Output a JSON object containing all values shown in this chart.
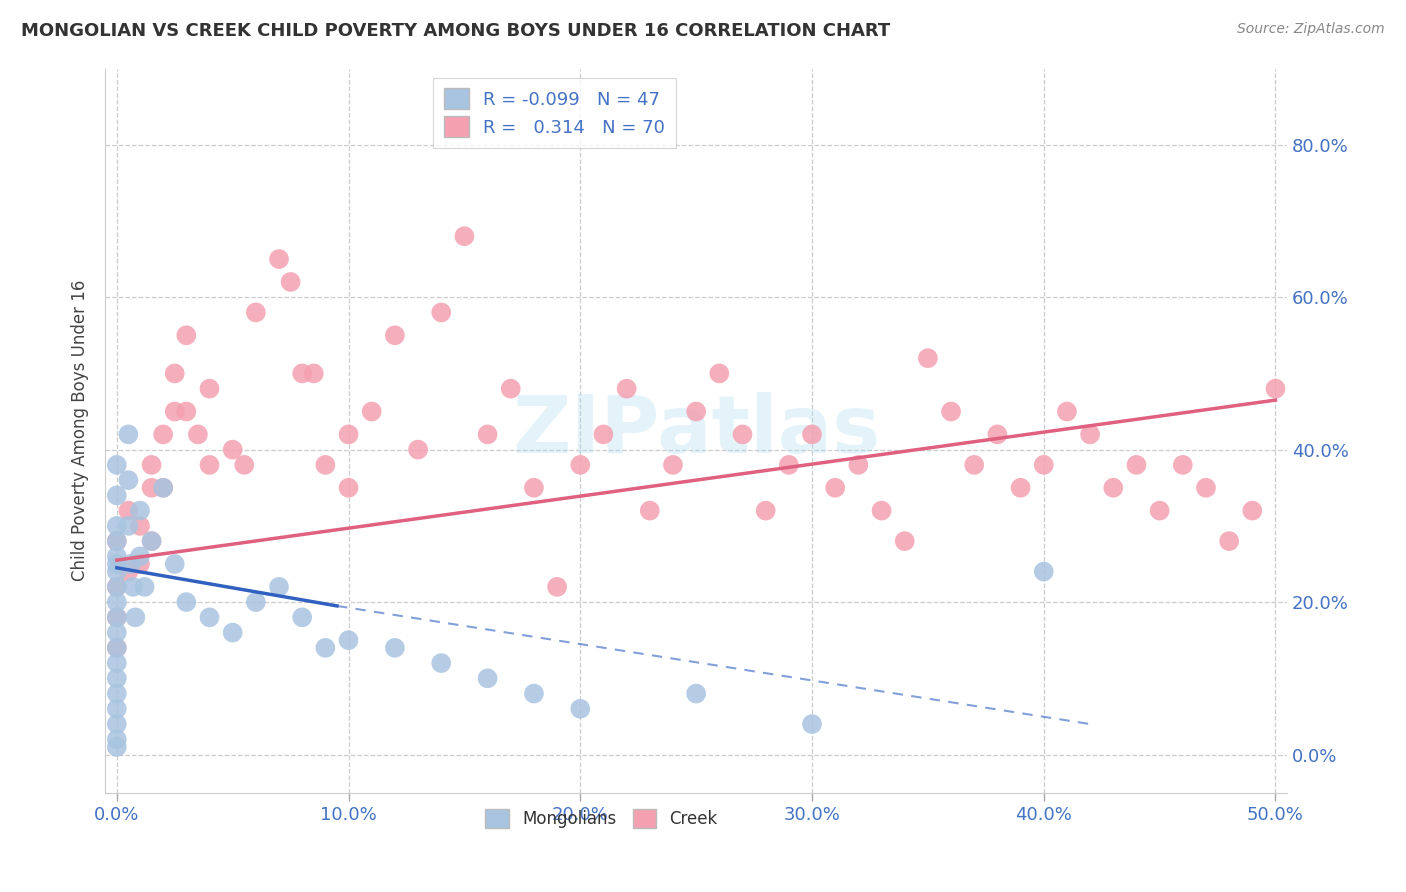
{
  "title": "MONGOLIAN VS CREEK CHILD POVERTY AMONG BOYS UNDER 16 CORRELATION CHART",
  "source": "Source: ZipAtlas.com",
  "ylabel": "Child Poverty Among Boys Under 16",
  "xlim": [
    -0.005,
    0.505
  ],
  "ylim": [
    -0.05,
    0.9
  ],
  "x_ticks": [
    0.0,
    0.1,
    0.2,
    0.3,
    0.4,
    0.5
  ],
  "x_tick_labels": [
    "0.0%",
    "10.0%",
    "20.0%",
    "30.0%",
    "40.0%",
    "50.0%"
  ],
  "y_ticks": [
    0.0,
    0.2,
    0.4,
    0.6,
    0.8
  ],
  "y_tick_labels": [
    "0.0%",
    "20.0%",
    "40.0%",
    "60.0%",
    "80.0%"
  ],
  "mongolian_color": "#a8c4e0",
  "creek_color": "#f4a0b0",
  "mongolian_line_color": "#3060c0",
  "creek_line_color": "#e06080",
  "r_mongolian": -0.099,
  "n_mongolian": 47,
  "r_creek": 0.314,
  "n_creek": 70,
  "mongolian_x": [
    0.0,
    0.0,
    0.0,
    0.0,
    0.0,
    0.0,
    0.0,
    0.0,
    0.0,
    0.0,
    0.0,
    0.0,
    0.0,
    0.0,
    0.0,
    0.0,
    0.0,
    0.0,
    0.0,
    0.005,
    0.005,
    0.005,
    0.006,
    0.007,
    0.008,
    0.01,
    0.01,
    0.012,
    0.015,
    0.02,
    0.025,
    0.03,
    0.04,
    0.05,
    0.06,
    0.07,
    0.08,
    0.09,
    0.1,
    0.12,
    0.14,
    0.16,
    0.18,
    0.2,
    0.25,
    0.3,
    0.4
  ],
  "mongolian_y": [
    0.38,
    0.34,
    0.3,
    0.28,
    0.26,
    0.25,
    0.24,
    0.22,
    0.2,
    0.18,
    0.16,
    0.14,
    0.12,
    0.1,
    0.08,
    0.06,
    0.04,
    0.02,
    0.01,
    0.42,
    0.36,
    0.3,
    0.25,
    0.22,
    0.18,
    0.32,
    0.26,
    0.22,
    0.28,
    0.35,
    0.25,
    0.2,
    0.18,
    0.16,
    0.2,
    0.22,
    0.18,
    0.14,
    0.15,
    0.14,
    0.12,
    0.1,
    0.08,
    0.06,
    0.08,
    0.04,
    0.24
  ],
  "creek_x": [
    0.0,
    0.0,
    0.0,
    0.0,
    0.005,
    0.005,
    0.01,
    0.01,
    0.015,
    0.015,
    0.02,
    0.02,
    0.025,
    0.03,
    0.03,
    0.04,
    0.04,
    0.05,
    0.06,
    0.07,
    0.08,
    0.09,
    0.1,
    0.1,
    0.11,
    0.12,
    0.13,
    0.14,
    0.15,
    0.16,
    0.17,
    0.18,
    0.19,
    0.2,
    0.21,
    0.22,
    0.23,
    0.24,
    0.25,
    0.26,
    0.27,
    0.28,
    0.29,
    0.3,
    0.31,
    0.32,
    0.33,
    0.34,
    0.35,
    0.36,
    0.37,
    0.38,
    0.39,
    0.4,
    0.41,
    0.42,
    0.43,
    0.44,
    0.45,
    0.46,
    0.47,
    0.48,
    0.49,
    0.5,
    0.015,
    0.025,
    0.035,
    0.055,
    0.075,
    0.085
  ],
  "creek_y": [
    0.28,
    0.22,
    0.18,
    0.14,
    0.32,
    0.24,
    0.3,
    0.25,
    0.38,
    0.28,
    0.42,
    0.35,
    0.5,
    0.55,
    0.45,
    0.48,
    0.38,
    0.4,
    0.58,
    0.65,
    0.5,
    0.38,
    0.42,
    0.35,
    0.45,
    0.55,
    0.4,
    0.58,
    0.68,
    0.42,
    0.48,
    0.35,
    0.22,
    0.38,
    0.42,
    0.48,
    0.32,
    0.38,
    0.45,
    0.5,
    0.42,
    0.32,
    0.38,
    0.42,
    0.35,
    0.38,
    0.32,
    0.28,
    0.52,
    0.45,
    0.38,
    0.42,
    0.35,
    0.38,
    0.45,
    0.42,
    0.35,
    0.38,
    0.32,
    0.38,
    0.35,
    0.28,
    0.32,
    0.48,
    0.35,
    0.45,
    0.42,
    0.38,
    0.62,
    0.5
  ],
  "creek_line_start_y": 0.255,
  "creek_line_end_y": 0.465,
  "mong_line_start_x": 0.0,
  "mong_line_start_y": 0.245,
  "mong_line_solid_end_x": 0.095,
  "mong_line_solid_end_y": 0.195,
  "mong_line_dash_end_x": 0.42,
  "mong_line_dash_end_y": 0.04
}
